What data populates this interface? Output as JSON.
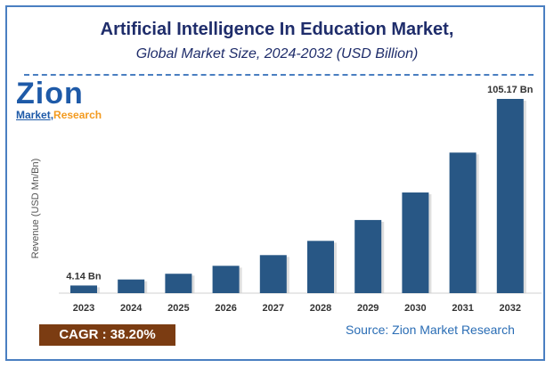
{
  "title": "Artificial Intelligence In Education Market,",
  "subtitle": "Global Market Size, 2024-2032 (USD Billion)",
  "logo": {
    "word": "Zion",
    "tagline1": "Market",
    "tagline2": "Research"
  },
  "cagr": "CAGR : 38.20%",
  "source": "Source: Zion Market Research",
  "colors": {
    "bar": "#285785",
    "title": "#1f2d6b",
    "cagr_bg": "#7b3c12"
  },
  "chart_data": {
    "type": "bar",
    "title": "Artificial Intelligence In Education Market, Global Market Size, 2024-2032 (USD Billion)",
    "xlabel": "",
    "ylabel": "Revenue (USD Mn/Bn)",
    "categories": [
      "2023",
      "2024",
      "2025",
      "2026",
      "2027",
      "2028",
      "2029",
      "2030",
      "2031",
      "2032"
    ],
    "values": [
      4.14,
      7.4,
      10.5,
      14.8,
      20.6,
      28.3,
      39.6,
      54.5,
      76.1,
      105.17
    ],
    "data_labels": {
      "2023": "4.14 Bn",
      "2032": "105.17 Bn"
    },
    "ylim": [
      0,
      105.17
    ],
    "grid": false
  }
}
